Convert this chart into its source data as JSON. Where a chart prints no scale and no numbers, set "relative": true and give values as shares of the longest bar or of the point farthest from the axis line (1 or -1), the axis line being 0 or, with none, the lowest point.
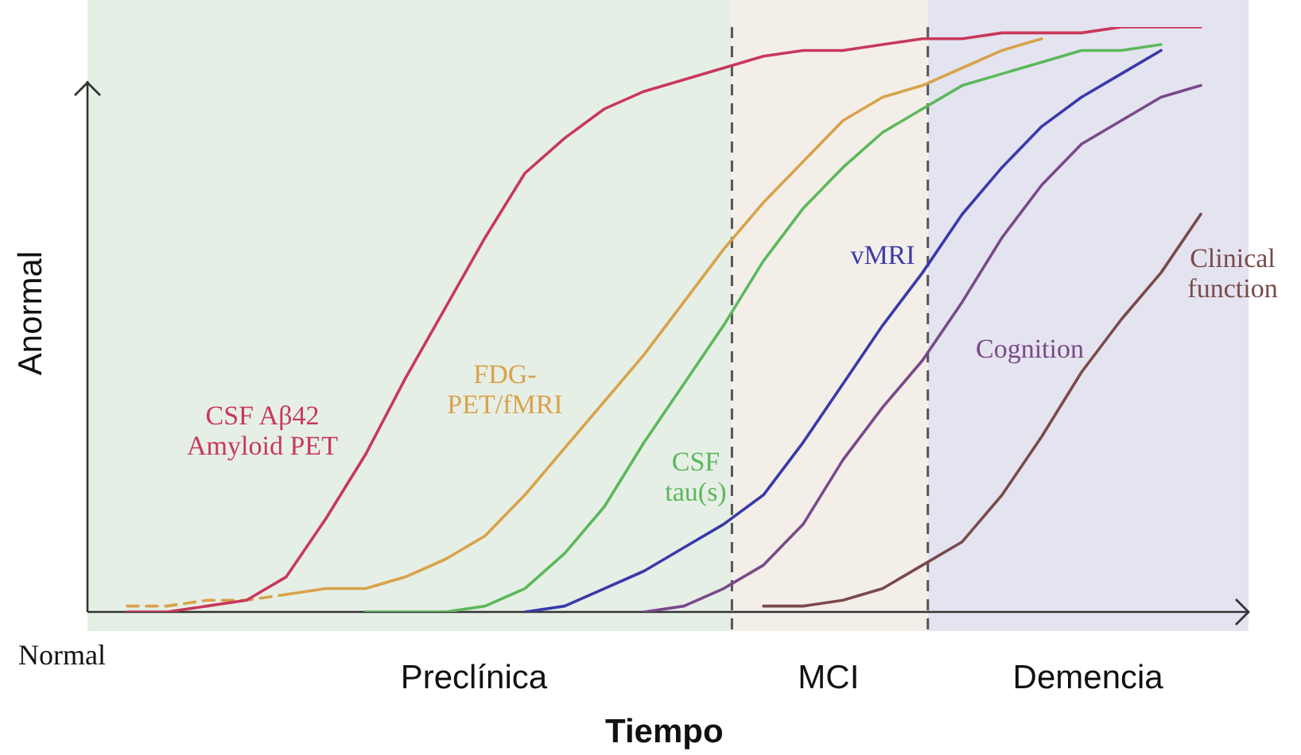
{
  "chart_data": {
    "type": "line",
    "relative": true,
    "xlabel": "Tiempo",
    "ylabel": "Anormal",
    "annotations": [
      "Normal",
      "Preclínica",
      "MCI",
      "Demencia"
    ],
    "categories": [
      null,
      null,
      null,
      null,
      null,
      null,
      null,
      null,
      null,
      null,
      null,
      null,
      null,
      null,
      null,
      null,
      null,
      null,
      null,
      null,
      null,
      null,
      null,
      null,
      null,
      null,
      null,
      null,
      null,
      null
    ],
    "series": [
      {
        "name": "CSF Aβ42 Amyloid PET",
        "color": "#c8385a",
        "values": [
          null,
          0.0,
          0.0,
          0.01,
          0.02,
          0.06,
          0.16,
          0.27,
          0.4,
          0.52,
          0.64,
          0.75,
          0.81,
          0.86,
          0.89,
          0.91,
          0.93,
          0.95,
          0.96,
          0.96,
          0.97,
          0.98,
          0.98,
          0.99,
          0.99,
          0.99,
          1.0,
          1.0,
          1.0,
          null
        ]
      },
      {
        "color": "#d9a24a",
        "line_style": "dashed",
        "values": [
          null,
          0.01,
          0.01,
          0.02,
          0.02,
          0.03,
          null,
          null,
          null,
          null,
          null,
          null,
          null,
          null,
          null,
          null,
          null,
          null,
          null,
          null,
          null,
          null,
          null,
          null,
          null,
          null,
          null,
          null,
          null,
          null
        ]
      },
      {
        "name": "FDG- PET/fMRI",
        "color": "#d9a24a",
        "values": [
          null,
          null,
          null,
          null,
          null,
          0.03,
          0.04,
          0.04,
          0.06,
          0.09,
          0.13,
          0.2,
          0.28,
          0.36,
          0.44,
          0.53,
          0.62,
          0.7,
          0.77,
          0.84,
          0.88,
          0.9,
          0.93,
          0.96,
          0.98,
          null,
          null,
          null,
          null,
          null
        ]
      },
      {
        "name": "CSF tau(s)",
        "color": "#5cb85c",
        "values": [
          null,
          null,
          null,
          null,
          null,
          null,
          null,
          0.0,
          0.0,
          0.0,
          0.01,
          0.04,
          0.1,
          0.18,
          0.29,
          0.39,
          0.49,
          0.6,
          0.69,
          0.76,
          0.82,
          0.86,
          0.9,
          0.92,
          0.94,
          0.96,
          0.96,
          0.97,
          null,
          null
        ]
      },
      {
        "name": "vMRI",
        "color": "#3a3aaa",
        "values": [
          null,
          null,
          null,
          null,
          null,
          null,
          null,
          null,
          null,
          null,
          null,
          0.0,
          0.01,
          0.04,
          0.07,
          0.11,
          0.15,
          0.2,
          0.29,
          0.39,
          0.49,
          0.58,
          0.68,
          0.76,
          0.83,
          0.88,
          0.92,
          0.96,
          null,
          null
        ]
      },
      {
        "name": "Cognition",
        "color": "#7a4a8a",
        "values": [
          null,
          null,
          null,
          null,
          null,
          null,
          null,
          null,
          null,
          null,
          null,
          null,
          null,
          null,
          0.0,
          0.01,
          0.04,
          0.08,
          0.15,
          0.26,
          0.35,
          0.43,
          0.53,
          0.64,
          0.73,
          0.8,
          0.84,
          0.88,
          0.9,
          null
        ]
      },
      {
        "name": "Clinical function",
        "color": "#7a4a4a",
        "values": [
          null,
          null,
          null,
          null,
          null,
          null,
          null,
          null,
          null,
          null,
          null,
          null,
          null,
          null,
          null,
          null,
          null,
          0.01,
          0.01,
          0.02,
          0.04,
          0.08,
          0.12,
          0.2,
          0.3,
          0.41,
          0.5,
          0.58,
          0.68,
          null
        ]
      }
    ],
    "marker": "none"
  }
}
